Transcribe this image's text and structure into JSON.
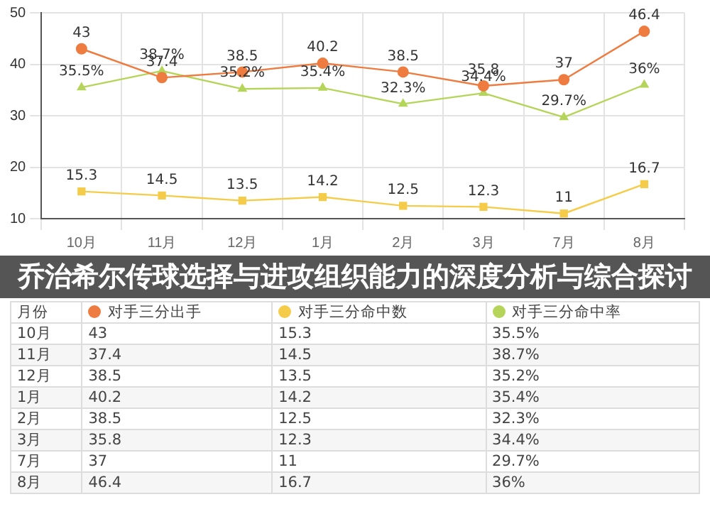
{
  "chart_data": {
    "type": "line",
    "title": "乔治希尔传球选择与进攻组织能力的深度分析与综合探讨",
    "xlabel": "月份",
    "categories": [
      "10月",
      "11月",
      "12月",
      "1月",
      "2月",
      "3月",
      "7月",
      "8月"
    ],
    "series": [
      {
        "name": "对手三分出手",
        "color": "#ee7b3f",
        "marker": "circle",
        "values": [
          43,
          37.4,
          38.5,
          40.2,
          38.5,
          35.8,
          37,
          46.4
        ],
        "value_labels": [
          "43",
          "37.4",
          "38.5",
          "40.2",
          "38.5",
          "35.8",
          "37",
          "46.4"
        ]
      },
      {
        "name": "对手三分命中数",
        "color": "#f5cc4a",
        "marker": "square",
        "values": [
          15.3,
          14.5,
          13.5,
          14.2,
          12.5,
          12.3,
          11,
          16.7
        ],
        "value_labels": [
          "15.3",
          "14.5",
          "13.5",
          "14.2",
          "12.5",
          "12.3",
          "11",
          "16.7"
        ]
      },
      {
        "name": "对手三分命中率",
        "color": "#b5d55a",
        "marker": "triangle",
        "values": [
          35.5,
          38.7,
          35.2,
          35.4,
          32.3,
          34.4,
          29.7,
          36
        ],
        "value_labels": [
          "35.5%",
          "38.7%",
          "35.2%",
          "35.4%",
          "32.3%",
          "34.4%",
          "29.7%",
          "36%"
        ]
      }
    ],
    "ylim": [
      10,
      50
    ],
    "yticks": [
      10,
      20,
      30,
      40,
      50
    ],
    "grid": true,
    "legend": "bottom",
    "line_style": "solid"
  }
}
